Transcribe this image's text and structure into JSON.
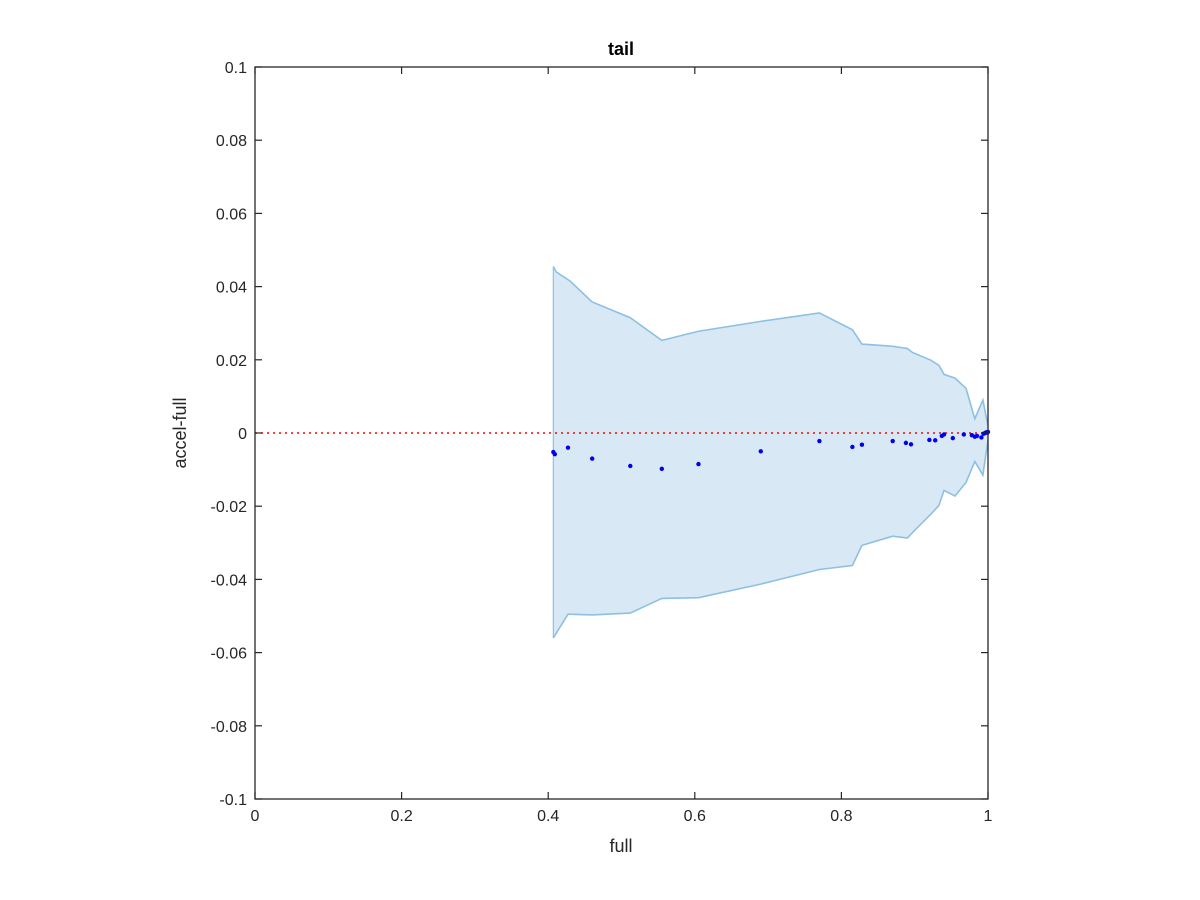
{
  "chart_data": {
    "type": "scatter",
    "title": "tail",
    "xlabel": "full",
    "ylabel": "accel-full",
    "xlim": [
      0,
      1
    ],
    "ylim": [
      -0.1,
      0.1
    ],
    "xticks": [
      0,
      0.2,
      0.4,
      0.6,
      0.8,
      1
    ],
    "xtick_labels": [
      "0",
      "0.2",
      "0.4",
      "0.6",
      "0.8",
      "1"
    ],
    "yticks": [
      0.1,
      0.08,
      0.06,
      0.04,
      0.02,
      0,
      -0.02,
      -0.04,
      -0.06,
      -0.08,
      -0.1
    ],
    "ytick_labels": [
      "0.1",
      "0.08",
      "0.06",
      "0.04",
      "0.02",
      "0",
      "-0.02",
      "-0.04",
      "-0.06",
      "-0.08",
      "-0.1"
    ],
    "grid": false,
    "reference_line": {
      "y": 0,
      "style": "dotted",
      "color": "#ff0000"
    },
    "band": {
      "color_fill": "#d8e8f4",
      "color_edge": "#8ec0e2",
      "upper": [
        [
          0.407,
          0.0455
        ],
        [
          0.411,
          0.044
        ],
        [
          0.43,
          0.0415
        ],
        [
          0.46,
          0.0358
        ],
        [
          0.512,
          0.0315
        ],
        [
          0.555,
          0.0253
        ],
        [
          0.605,
          0.0278
        ],
        [
          0.69,
          0.0305
        ],
        [
          0.77,
          0.0328
        ],
        [
          0.815,
          0.0282
        ],
        [
          0.828,
          0.0243
        ],
        [
          0.87,
          0.0237
        ],
        [
          0.89,
          0.0231
        ],
        [
          0.897,
          0.022
        ],
        [
          0.922,
          0.0199
        ],
        [
          0.933,
          0.0185
        ],
        [
          0.94,
          0.016
        ],
        [
          0.955,
          0.015
        ],
        [
          0.97,
          0.0122
        ],
        [
          0.982,
          0.0039
        ],
        [
          0.993,
          0.009
        ],
        [
          1.0,
          0.002
        ]
      ],
      "lower": [
        [
          0.407,
          -0.056
        ],
        [
          0.427,
          -0.0495
        ],
        [
          0.46,
          -0.0497
        ],
        [
          0.512,
          -0.0492
        ],
        [
          0.555,
          -0.0452
        ],
        [
          0.605,
          -0.045
        ],
        [
          0.69,
          -0.0413
        ],
        [
          0.77,
          -0.0373
        ],
        [
          0.815,
          -0.0362
        ],
        [
          0.828,
          -0.0307
        ],
        [
          0.87,
          -0.0282
        ],
        [
          0.89,
          -0.0287
        ],
        [
          0.897,
          -0.0272
        ],
        [
          0.922,
          -0.0222
        ],
        [
          0.933,
          -0.0198
        ],
        [
          0.94,
          -0.0157
        ],
        [
          0.955,
          -0.0172
        ],
        [
          0.97,
          -0.0135
        ],
        [
          0.982,
          -0.0078
        ],
        [
          0.993,
          -0.0115
        ],
        [
          1.0,
          -0.002
        ]
      ]
    },
    "series": [
      {
        "color": "#0000ee",
        "points": [
          [
            0.407,
            -0.0052
          ],
          [
            0.409,
            -0.0058
          ],
          [
            0.427,
            -0.004
          ],
          [
            0.46,
            -0.007
          ],
          [
            0.512,
            -0.009
          ],
          [
            0.555,
            -0.0098
          ],
          [
            0.605,
            -0.0085
          ],
          [
            0.69,
            -0.005
          ],
          [
            0.77,
            -0.0022
          ],
          [
            0.815,
            -0.0038
          ],
          [
            0.828,
            -0.0032
          ],
          [
            0.87,
            -0.0022
          ],
          [
            0.888,
            -0.0027
          ],
          [
            0.895,
            -0.0031
          ],
          [
            0.92,
            -0.0019
          ],
          [
            0.928,
            -0.002
          ],
          [
            0.937,
            -0.0008
          ],
          [
            0.94,
            -0.0004
          ],
          [
            0.952,
            -0.0014
          ],
          [
            0.967,
            -0.0004
          ],
          [
            0.978,
            -0.0006
          ],
          [
            0.982,
            -0.001
          ],
          [
            0.985,
            -0.0008
          ],
          [
            0.991,
            -0.0012
          ],
          [
            0.994,
            -0.0002
          ],
          [
            0.996,
            0.0
          ],
          [
            0.998,
            0.0002
          ],
          [
            0.999,
            0.0001
          ],
          [
            1.0,
            0.0003
          ]
        ]
      }
    ]
  }
}
